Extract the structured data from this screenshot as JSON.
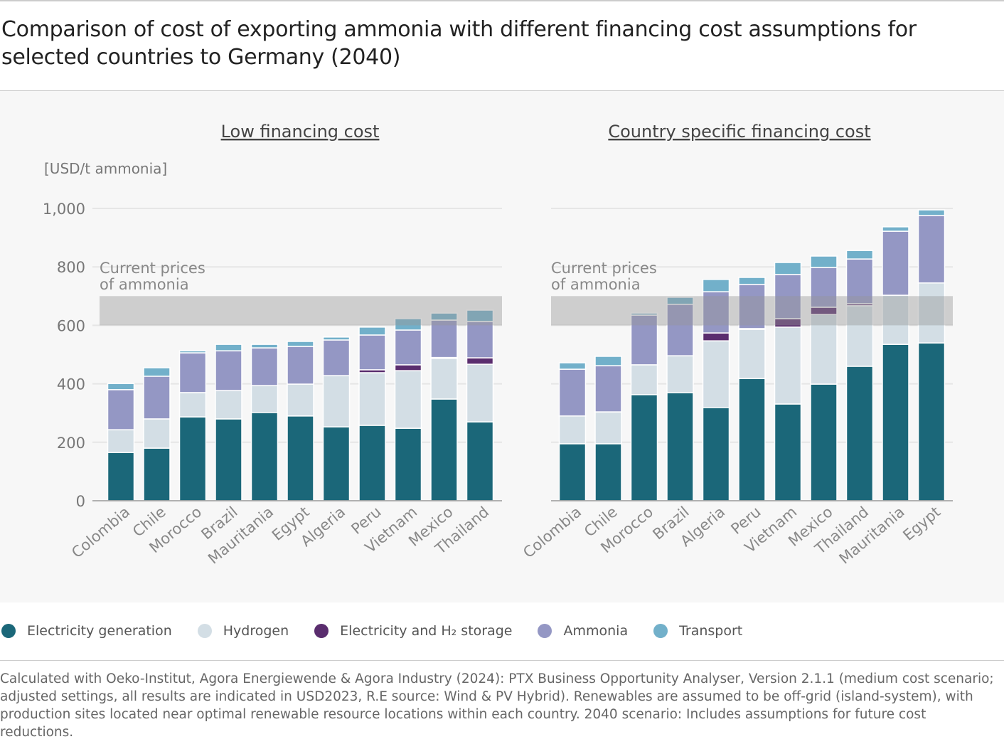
{
  "title": "Comparison of cost of exporting ammonia with different financing cost assumptions for selected countries to Germany (2040)",
  "footnote": "Calculated with Oeko-Institut, Agora Energiewende & Agora Industry (2024): PTX Business Opportunity Analyser, Version 2.1.1 (medium cost scenario; adjusted settings, all results are indicated in USD2023, R.E source: Wind & PV Hybrid). Renewables are assumed to be off-grid (island-system), with production sites located near optimal renewable resource locations within each country. 2040 scenario: Includes assumptions for future cost reductions.",
  "legend": [
    {
      "label": "Electricity generation",
      "color": "#1b6779"
    },
    {
      "label": "Hydrogen",
      "color": "#d3dee5"
    },
    {
      "label": "Electricity and H₂ storage",
      "color": "#5a2d6e"
    },
    {
      "label": "Ammonia",
      "color": "#9497c4"
    },
    {
      "label": "Transport",
      "color": "#72b0ca"
    }
  ],
  "chart_data": [
    {
      "type": "bar",
      "stacked": true,
      "title": "Low financing cost",
      "ylabel": "[USD/t ammonia]",
      "ylim": [
        0,
        1000
      ],
      "yticks": [
        0,
        200,
        400,
        600,
        800,
        1000
      ],
      "ytick_labels": [
        "0",
        "200",
        "400",
        "600",
        "800",
        "1,000"
      ],
      "grid": true,
      "band": {
        "from": 600,
        "to": 700,
        "label": "Current prices of ammonia"
      },
      "categories": [
        "Colombia",
        "Chile",
        "Morocco",
        "Brazil",
        "Mauritania",
        "Egypt",
        "Algeria",
        "Peru",
        "Vietnam",
        "Mexico",
        "Thailand"
      ],
      "series": [
        {
          "name": "Electricity generation",
          "values": [
            165,
            180,
            287,
            280,
            302,
            290,
            253,
            258,
            248,
            348,
            270
          ]
        },
        {
          "name": "Hydrogen",
          "values": [
            78,
            100,
            83,
            97,
            92,
            109,
            175,
            180,
            197,
            139,
            197
          ]
        },
        {
          "name": "Electricity and H₂ storage",
          "values": [
            0,
            0,
            0,
            0,
            0,
            0,
            0,
            10,
            20,
            3,
            22
          ]
        },
        {
          "name": "Ammonia",
          "values": [
            137,
            146,
            136,
            136,
            129,
            129,
            122,
            119,
            119,
            128,
            124
          ]
        },
        {
          "name": "Transport",
          "values": [
            21,
            29,
            7,
            22,
            12,
            17,
            10,
            27,
            39,
            24,
            39
          ]
        }
      ]
    },
    {
      "type": "bar",
      "stacked": true,
      "title": "Country specific financing cost",
      "ylim": [
        0,
        1000
      ],
      "grid": true,
      "band": {
        "from": 600,
        "to": 700,
        "label": "Current prices of ammonia"
      },
      "categories": [
        "Colombia",
        "Chile",
        "Morocco",
        "Brazil",
        "Algeria",
        "Peru",
        "Vietnam",
        "Mexico",
        "Thailand",
        "Mauritania",
        "Egypt"
      ],
      "series": [
        {
          "name": "Electricity generation",
          "values": [
            195,
            195,
            363,
            370,
            319,
            418,
            331,
            399,
            460,
            535,
            540
          ]
        },
        {
          "name": "Hydrogen",
          "values": [
            95,
            109,
            102,
            126,
            228,
            168,
            263,
            238,
            207,
            168,
            205
          ]
        },
        {
          "name": "Electricity and H₂ storage",
          "values": [
            0,
            0,
            0,
            0,
            27,
            3,
            29,
            25,
            7,
            0,
            0
          ]
        },
        {
          "name": "Ammonia",
          "values": [
            160,
            158,
            170,
            176,
            141,
            151,
            151,
            136,
            153,
            219,
            231
          ]
        },
        {
          "name": "Transport",
          "values": [
            22,
            32,
            7,
            24,
            42,
            24,
            41,
            39,
            29,
            15,
            19
          ]
        }
      ]
    }
  ]
}
